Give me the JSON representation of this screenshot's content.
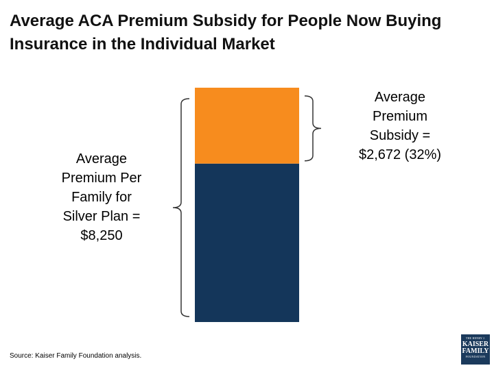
{
  "title": {
    "line1": "Average ACA Premium Subsidy for People Now Buying",
    "line2": "Insurance in the Individual Market"
  },
  "chart_data": {
    "type": "bar",
    "stacked": true,
    "categories": [
      ""
    ],
    "total": 8250,
    "series": [
      {
        "name": "",
        "values": [
          5578
        ],
        "color": "#14365a"
      },
      {
        "name": "",
        "values": [
          2672
        ],
        "color": "#f78c1e"
      }
    ],
    "annotations": {
      "left": [
        "Average",
        "Premium Per",
        "Family for",
        "Silver Plan =",
        "$8,250"
      ],
      "right": [
        "Average",
        "Premium",
        "Subsidy =",
        "$2,672 (32%)"
      ]
    }
  },
  "source": "Source: Kaiser Family Foundation analysis.",
  "logo": {
    "line1": "THE HENRY J.",
    "line2": "KAISER",
    "line3": "FAMILY",
    "line4": "FOUNDATION"
  }
}
